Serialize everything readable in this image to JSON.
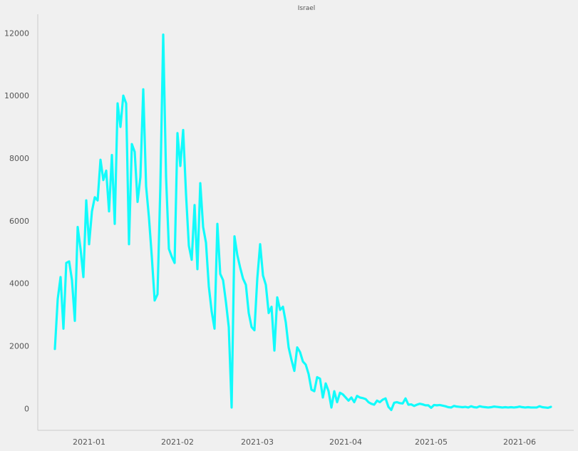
{
  "chart_data": {
    "type": "line",
    "title": "Israel",
    "xlabel": "",
    "ylabel": "",
    "x_start": "2020-12-20",
    "x_end": "2021-06-13",
    "xlim": [
      "2020-12-14",
      "2021-06-20"
    ],
    "ylim": [
      -700,
      12600
    ],
    "x_ticks": [
      "2021-01",
      "2021-02",
      "2021-03",
      "2021-04",
      "2021-05",
      "2021-06"
    ],
    "y_ticks": [
      0,
      2000,
      4000,
      6000,
      8000,
      10000,
      12000
    ],
    "grid": false,
    "legend": "none",
    "series": [
      {
        "color": "#12fbfb",
        "values": [
          1900,
          3500,
          4200,
          2550,
          4650,
          4700,
          4100,
          2800,
          5800,
          5100,
          4200,
          6650,
          5250,
          6300,
          6750,
          6650,
          7950,
          7300,
          7600,
          6300,
          8100,
          5900,
          9750,
          9000,
          10000,
          9750,
          5250,
          8450,
          8200,
          6600,
          7400,
          10200,
          7100,
          6100,
          4850,
          3450,
          3650,
          7100,
          11950,
          7400,
          5100,
          4850,
          4650,
          8800,
          7750,
          8900,
          6850,
          5200,
          4750,
          6500,
          4450,
          7200,
          5800,
          5300,
          3900,
          3100,
          2550,
          5900,
          4300,
          4100,
          3400,
          2600,
          30,
          5500,
          4900,
          4500,
          4150,
          3950,
          3050,
          2600,
          2500,
          4150,
          5250,
          4250,
          3950,
          3050,
          3250,
          1850,
          3550,
          3150,
          3250,
          2750,
          1950,
          1550,
          1200,
          1950,
          1800,
          1500,
          1400,
          1100,
          600,
          550,
          1000,
          950,
          350,
          800,
          550,
          30,
          550,
          200,
          500,
          450,
          350,
          250,
          350,
          200,
          400,
          350,
          330,
          300,
          200,
          150,
          120,
          250,
          200,
          280,
          320,
          50,
          -50,
          180,
          200,
          170,
          160,
          320,
          120,
          130,
          80,
          120,
          150,
          130,
          100,
          100,
          20,
          110,
          100,
          110,
          90,
          70,
          40,
          30,
          80,
          60,
          50,
          40,
          50,
          30,
          70,
          40,
          30,
          70,
          50,
          40,
          30,
          40,
          60,
          50,
          40,
          30,
          40,
          30,
          40,
          30,
          40,
          60,
          40,
          30,
          40,
          30,
          30,
          30,
          70,
          40,
          30,
          20,
          50
        ]
      }
    ]
  }
}
